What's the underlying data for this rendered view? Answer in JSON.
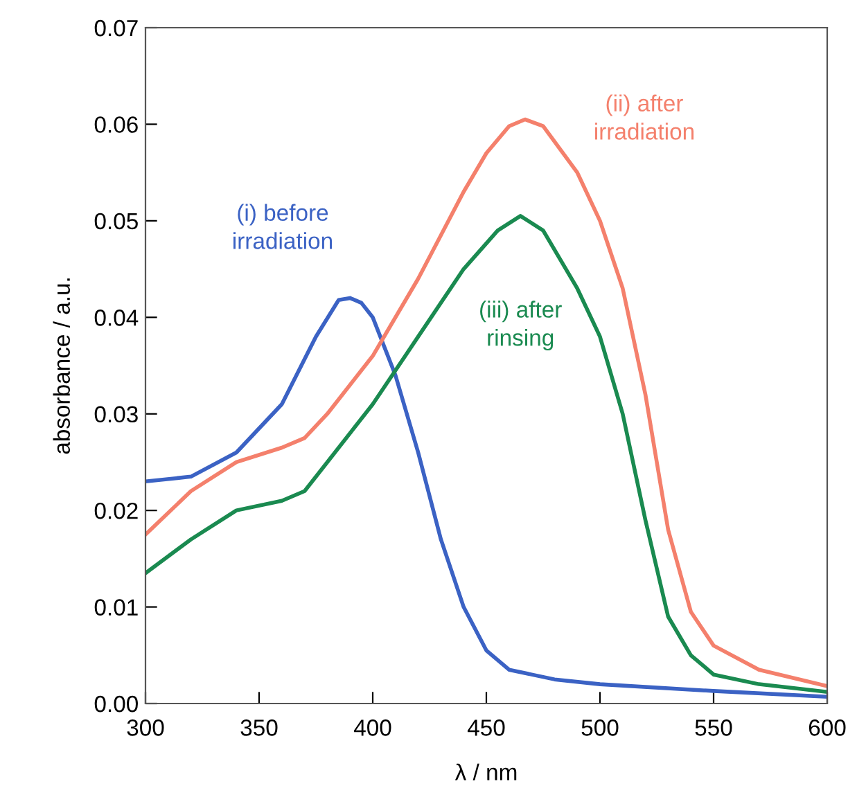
{
  "chart_data": {
    "type": "line",
    "xlabel": "λ / nm",
    "ylabel": "absorbance / a.u.",
    "xlim": [
      300,
      600
    ],
    "ylim": [
      0,
      0.07
    ],
    "xticks": [
      300,
      350,
      400,
      450,
      500,
      550,
      600
    ],
    "yticks": [
      {
        "value": 0,
        "label": "0.00"
      },
      {
        "value": 0.01,
        "label": "0.01"
      },
      {
        "value": 0.02,
        "label": "0.02"
      },
      {
        "value": 0.03,
        "label": "0.03"
      },
      {
        "value": 0.04,
        "label": "0.04"
      },
      {
        "value": 0.05,
        "label": "0.05"
      },
      {
        "value": 0.06,
        "label": "0.06"
      },
      {
        "value": 0.07,
        "label": "0.07"
      }
    ],
    "grid": false,
    "marker": "none",
    "line_style": "solid",
    "series": [
      {
        "name": "(i) before\nirradiation",
        "color": "#3b62c4",
        "x": [
          300,
          320,
          340,
          360,
          375,
          385,
          390,
          395,
          400,
          410,
          420,
          430,
          440,
          450,
          460,
          480,
          500,
          550,
          600
        ],
        "values": [
          0.023,
          0.0235,
          0.026,
          0.031,
          0.038,
          0.0418,
          0.042,
          0.0415,
          0.04,
          0.034,
          0.026,
          0.017,
          0.01,
          0.0055,
          0.0035,
          0.0025,
          0.002,
          0.0013,
          0.0007
        ]
      },
      {
        "name": "(ii) after\nirradiation",
        "color": "#f4806c",
        "x": [
          300,
          320,
          340,
          360,
          370,
          380,
          400,
          420,
          440,
          450,
          460,
          467,
          475,
          490,
          500,
          510,
          520,
          530,
          540,
          550,
          570,
          600
        ],
        "values": [
          0.0175,
          0.022,
          0.025,
          0.0265,
          0.0275,
          0.03,
          0.036,
          0.044,
          0.053,
          0.057,
          0.0598,
          0.0605,
          0.0598,
          0.055,
          0.05,
          0.043,
          0.032,
          0.018,
          0.0095,
          0.006,
          0.0035,
          0.0018
        ]
      },
      {
        "name": "(iii) after\nrinsing",
        "color": "#1a8a50",
        "x": [
          300,
          320,
          340,
          360,
          370,
          380,
          400,
          420,
          440,
          455,
          465,
          475,
          490,
          500,
          510,
          520,
          530,
          540,
          550,
          570,
          600
        ],
        "values": [
          0.0135,
          0.017,
          0.02,
          0.021,
          0.022,
          0.025,
          0.031,
          0.038,
          0.045,
          0.049,
          0.0505,
          0.049,
          0.043,
          0.038,
          0.03,
          0.019,
          0.009,
          0.005,
          0.003,
          0.002,
          0.0012
        ]
      }
    ]
  }
}
